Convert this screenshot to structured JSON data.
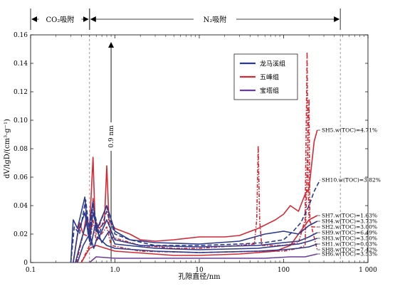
{
  "chart_data": {
    "type": "line",
    "x_scale": "log",
    "xlim": [
      0.1,
      1000
    ],
    "ylim": [
      0,
      0.16
    ],
    "xlabel": "孔隙直径/nm",
    "ylabel": "dV/lgD/(cm³·g⁻¹)",
    "x_ticks": [
      0.1,
      1,
      10,
      100,
      1000
    ],
    "x_tick_labels": [
      "0.1",
      "1.0",
      "10",
      "100",
      "1 000"
    ],
    "y_ticks": [
      0,
      0.02,
      0.04,
      0.06,
      0.08,
      0.1,
      0.12,
      0.14,
      0.16
    ],
    "y_tick_labels": [
      "0",
      "0.02",
      "0.04",
      "0.06",
      "0.08",
      "0.10",
      "0.12",
      "0.14",
      "0.16"
    ],
    "regions": [
      {
        "label": "CO₂吸附",
        "x_start": 0.1,
        "x_end": 0.5
      },
      {
        "label": "N₂吸附",
        "x_start": 0.5,
        "x_end": 470
      }
    ],
    "marker": {
      "label": "0.9 nm",
      "x": 0.9
    },
    "legend": {
      "placement": "upper-center",
      "entries": [
        {
          "name": "龙马溪组",
          "color": "#2b3a8f"
        },
        {
          "name": "五峰组",
          "color": "#d42a35"
        },
        {
          "name": "宝塔组",
          "color": "#6a3d9a"
        }
      ]
    },
    "annotations": [
      {
        "text": "SH5.w(TOC)=4.71%",
        "x": 250,
        "y": 0.093
      },
      {
        "text": "SH10.w(TOC)=3.82%",
        "x": 270,
        "y": 0.058
      },
      {
        "text": "SH7.w(TOC)=1.63%",
        "x": 250,
        "y": 0.033
      },
      {
        "text": "SH4.w(TOC)=3.73%",
        "x": 250,
        "y": 0.029
      },
      {
        "text": "SH2.w(TOC)=3.00%",
        "x": 250,
        "y": 0.025
      },
      {
        "text": "SH9.w(TOC)=6.49%",
        "x": 250,
        "y": 0.021
      },
      {
        "text": "SH3.w(TOC)=3.50%",
        "x": 250,
        "y": 0.017
      },
      {
        "text": "SH1.w(TOC)=0.03%",
        "x": 250,
        "y": 0.013
      },
      {
        "text": "SH8.w(TOC)=7.42%",
        "x": 250,
        "y": 0.009
      },
      {
        "text": "SH6.w(TOC)=3.53%",
        "x": 250,
        "y": 0.006
      }
    ],
    "series": [
      {
        "name": "SH5",
        "group": "五峰组",
        "style": "solid",
        "color": "#d42a35",
        "points": [
          [
            0.32,
            0
          ],
          [
            0.35,
            0.015
          ],
          [
            0.38,
            0.028
          ],
          [
            0.42,
            0.02
          ],
          [
            0.46,
            0.033
          ],
          [
            0.5,
            0.024
          ],
          [
            0.55,
            0.074
          ],
          [
            0.58,
            0.03
          ],
          [
            0.65,
            0.024
          ],
          [
            0.75,
            0.028
          ],
          [
            0.8,
            0.068
          ],
          [
            0.85,
            0.03
          ],
          [
            1,
            0.024
          ],
          [
            1.5,
            0.02
          ],
          [
            2,
            0.016
          ],
          [
            3,
            0.015
          ],
          [
            5,
            0.016
          ],
          [
            10,
            0.018
          ],
          [
            20,
            0.018
          ],
          [
            30,
            0.019
          ],
          [
            50,
            0.024
          ],
          [
            80,
            0.03
          ],
          [
            100,
            0.034
          ],
          [
            120,
            0.04
          ],
          [
            150,
            0.036
          ],
          [
            180,
            0.048
          ],
          [
            200,
            0.052
          ],
          [
            230,
            0.085
          ],
          [
            250,
            0.093
          ]
        ]
      },
      {
        "name": "SH2",
        "group": "五峰组",
        "style": "dashdot",
        "color": "#d42a35",
        "points": [
          [
            0.35,
            0
          ],
          [
            0.42,
            0.02
          ],
          [
            0.5,
            0.018
          ],
          [
            0.55,
            0.045
          ],
          [
            0.6,
            0.02
          ],
          [
            0.8,
            0.04
          ],
          [
            0.9,
            0.018
          ],
          [
            2,
            0.012
          ],
          [
            5,
            0.01
          ],
          [
            10,
            0.01
          ],
          [
            30,
            0.012
          ],
          [
            45,
            0.013
          ],
          [
            48,
            0.03
          ],
          [
            50,
            0.082
          ],
          [
            52,
            0.03
          ],
          [
            55,
            0.012
          ],
          [
            100,
            0.012
          ],
          [
            150,
            0.014
          ],
          [
            180,
            0.03
          ],
          [
            190,
            0.148
          ],
          [
            195,
            0.06
          ],
          [
            200,
            0.03
          ],
          [
            220,
            0.025
          ],
          [
            250,
            0.025
          ]
        ]
      },
      {
        "name": "SH8",
        "group": "五峰组",
        "style": "dashdot",
        "color": "#d42a35",
        "points": [
          [
            0.4,
            0
          ],
          [
            0.5,
            0.012
          ],
          [
            0.55,
            0.03
          ],
          [
            0.6,
            0.015
          ],
          [
            0.8,
            0.025
          ],
          [
            0.9,
            0.012
          ],
          [
            2,
            0.008
          ],
          [
            10,
            0.007
          ],
          [
            50,
            0.008
          ],
          [
            100,
            0.008
          ],
          [
            150,
            0.01
          ],
          [
            180,
            0.012
          ],
          [
            200,
            0.115
          ],
          [
            205,
            0.03
          ],
          [
            250,
            0.009
          ]
        ]
      },
      {
        "name": "SH7",
        "group": "五峰组",
        "style": "solid",
        "color": "#d42a35",
        "points": [
          [
            0.4,
            0
          ],
          [
            0.5,
            0.01
          ],
          [
            0.6,
            0.012
          ],
          [
            1,
            0.008
          ],
          [
            5,
            0.005
          ],
          [
            10,
            0.005
          ],
          [
            30,
            0.006
          ],
          [
            80,
            0.008
          ],
          [
            120,
            0.012
          ],
          [
            150,
            0.02
          ],
          [
            200,
            0.03
          ],
          [
            250,
            0.033
          ]
        ]
      },
      {
        "name": "SH10",
        "group": "龙马溪组",
        "style": "dash",
        "color": "#2b3a8f",
        "points": [
          [
            0.3,
            0
          ],
          [
            0.33,
            0.025
          ],
          [
            0.38,
            0.02
          ],
          [
            0.45,
            0.044
          ],
          [
            0.5,
            0.02
          ],
          [
            0.55,
            0.04
          ],
          [
            0.65,
            0.02
          ],
          [
            0.8,
            0.036
          ],
          [
            1,
            0.02
          ],
          [
            1.5,
            0.016
          ],
          [
            3,
            0.012
          ],
          [
            10,
            0.012
          ],
          [
            30,
            0.013
          ],
          [
            60,
            0.014
          ],
          [
            100,
            0.016
          ],
          [
            130,
            0.022
          ],
          [
            160,
            0.028
          ],
          [
            200,
            0.04
          ],
          [
            230,
            0.05
          ],
          [
            270,
            0.058
          ]
        ]
      },
      {
        "name": "SH4",
        "group": "龙马溪组",
        "style": "solid",
        "color": "#2b3a8f",
        "points": [
          [
            0.3,
            0
          ],
          [
            0.32,
            0.03
          ],
          [
            0.36,
            0.024
          ],
          [
            0.44,
            0.046
          ],
          [
            0.48,
            0.02
          ],
          [
            0.55,
            0.043
          ],
          [
            0.6,
            0.022
          ],
          [
            0.8,
            0.04
          ],
          [
            1,
            0.022
          ],
          [
            1.5,
            0.016
          ],
          [
            3,
            0.014
          ],
          [
            10,
            0.013
          ],
          [
            30,
            0.015
          ],
          [
            60,
            0.02
          ],
          [
            100,
            0.022
          ],
          [
            150,
            0.02
          ],
          [
            200,
            0.026
          ],
          [
            250,
            0.029
          ]
        ]
      },
      {
        "name": "SH9",
        "group": "龙马溪组",
        "style": "solid",
        "color": "#2b3a8f",
        "points": [
          [
            0.32,
            0
          ],
          [
            0.36,
            0.02
          ],
          [
            0.44,
            0.035
          ],
          [
            0.5,
            0.015
          ],
          [
            0.55,
            0.035
          ],
          [
            0.65,
            0.018
          ],
          [
            0.8,
            0.03
          ],
          [
            1,
            0.016
          ],
          [
            2,
            0.012
          ],
          [
            10,
            0.011
          ],
          [
            50,
            0.012
          ],
          [
            100,
            0.014
          ],
          [
            150,
            0.015
          ],
          [
            200,
            0.018
          ],
          [
            250,
            0.021
          ]
        ]
      },
      {
        "name": "SH3",
        "group": "龙马溪组",
        "style": "solid",
        "color": "#2b3a8f",
        "points": [
          [
            0.34,
            0
          ],
          [
            0.4,
            0.016
          ],
          [
            0.46,
            0.028
          ],
          [
            0.52,
            0.012
          ],
          [
            0.58,
            0.026
          ],
          [
            0.7,
            0.014
          ],
          [
            0.85,
            0.022
          ],
          [
            1,
            0.013
          ],
          [
            3,
            0.01
          ],
          [
            10,
            0.009
          ],
          [
            50,
            0.01
          ],
          [
            100,
            0.012
          ],
          [
            150,
            0.013
          ],
          [
            200,
            0.015
          ],
          [
            250,
            0.017
          ]
        ]
      },
      {
        "name": "SH1",
        "group": "龙马溪组",
        "style": "solid",
        "color": "#2b3a8f",
        "points": [
          [
            0.36,
            0
          ],
          [
            0.42,
            0.012
          ],
          [
            0.5,
            0.02
          ],
          [
            0.56,
            0.01
          ],
          [
            0.62,
            0.018
          ],
          [
            0.8,
            0.012
          ],
          [
            1,
            0.01
          ],
          [
            3,
            0.008
          ],
          [
            10,
            0.007
          ],
          [
            50,
            0.008
          ],
          [
            100,
            0.009
          ],
          [
            150,
            0.01
          ],
          [
            200,
            0.011
          ],
          [
            250,
            0.013
          ]
        ]
      },
      {
        "name": "SH6",
        "group": "宝塔组",
        "style": "solid",
        "color": "#6a3d9a",
        "points": [
          [
            0.5,
            0
          ],
          [
            0.6,
            0.004
          ],
          [
            1,
            0.003
          ],
          [
            5,
            0.003
          ],
          [
            20,
            0.003
          ],
          [
            60,
            0.003
          ],
          [
            120,
            0.004
          ],
          [
            180,
            0.004
          ],
          [
            250,
            0.006
          ]
        ]
      }
    ]
  }
}
